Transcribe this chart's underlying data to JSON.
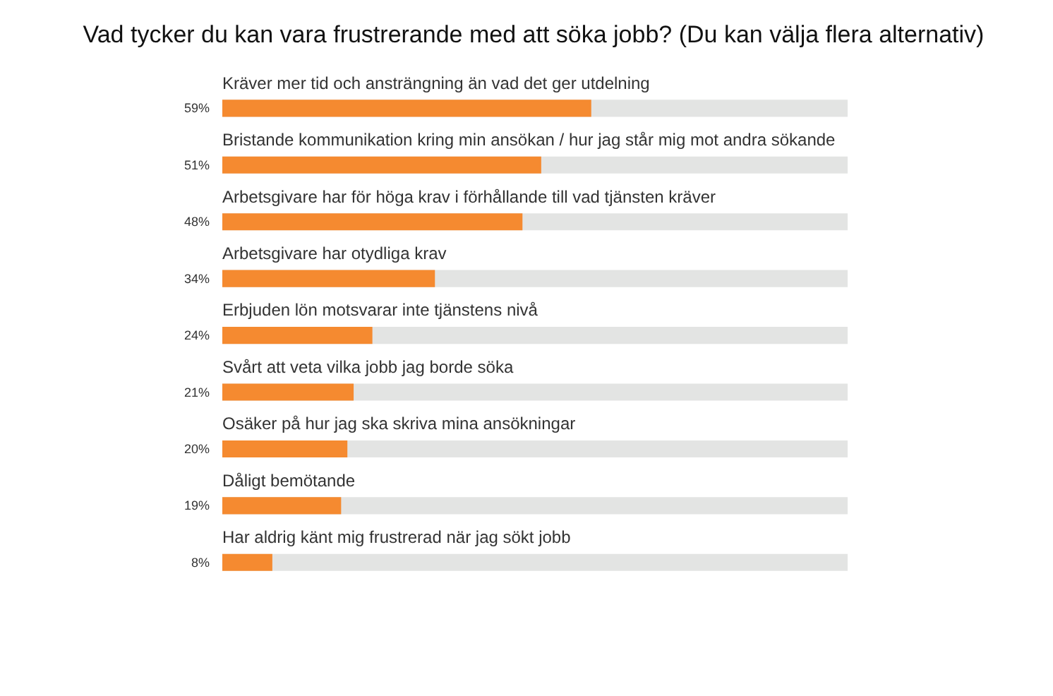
{
  "chart_data": {
    "type": "bar",
    "orientation": "horizontal",
    "title": "Vad tycker du kan vara frustrerande med att söka jobb? (Du kan välja flera alternativ)",
    "categories": [
      "Kräver mer tid och ansträngning än vad det ger utdelning",
      "Bristande kommunikation kring min ansökan / hur jag står mig mot andra sökande",
      "Arbetsgivare har för höga krav i förhållande till vad tjänsten kräver",
      "Arbetsgivare har otydliga krav",
      "Erbjuden lön motsvarar inte tjänstens nivå",
      "Svårt att veta vilka jobb jag borde söka",
      "Osäker på hur jag ska skriva mina ansökningar",
      "Dåligt bemötande",
      "Har aldrig känt mig frustrerad när jag sökt jobb"
    ],
    "values": [
      59,
      51,
      48,
      34,
      24,
      21,
      20,
      19,
      8
    ],
    "value_labels": [
      "59%",
      "51%",
      "48%",
      "34%",
      "24%",
      "21%",
      "20%",
      "19%",
      "8%"
    ],
    "color": "#f58a30",
    "xlim": [
      0,
      100
    ],
    "tick_labels": false,
    "grid": false
  }
}
